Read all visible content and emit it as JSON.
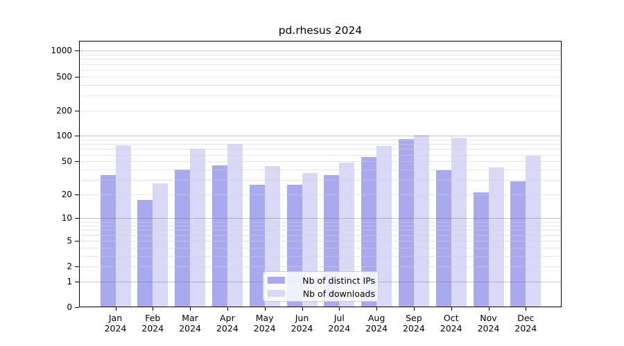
{
  "chart_data": {
    "type": "bar",
    "title": "pd.rhesus 2024",
    "categories": [
      "Jan 2024",
      "Feb 2024",
      "Mar 2024",
      "Apr 2024",
      "May 2024",
      "Jun 2024",
      "Jul 2024",
      "Aug 2024",
      "Sep 2024",
      "Oct 2024",
      "Nov 2024",
      "Dec 2024"
    ],
    "series": [
      {
        "name": "Nb of distinct IPs",
        "color": "#a9a9f0",
        "values": [
          34,
          17,
          40,
          45,
          26,
          26,
          34,
          56,
          91,
          39,
          21,
          29
        ]
      },
      {
        "name": "Nb of downloads",
        "color": "#d9d9f7",
        "values": [
          78,
          27,
          71,
          80,
          44,
          36,
          48,
          76,
          103,
          95,
          42,
          58
        ]
      }
    ],
    "xlabel": "",
    "ylabel": "",
    "y_scale": "log10(value+1), zero included at baseline",
    "y_ticks": [
      0,
      1,
      2,
      5,
      10,
      20,
      50,
      100,
      200,
      500,
      1000
    ],
    "y_major_gridlines": [
      1,
      10,
      100,
      1000
    ],
    "ylim": [
      0,
      1300
    ],
    "grid": "major and minor horizontal gridlines, drawn over bars",
    "legend_position": "inside bottom-center"
  }
}
